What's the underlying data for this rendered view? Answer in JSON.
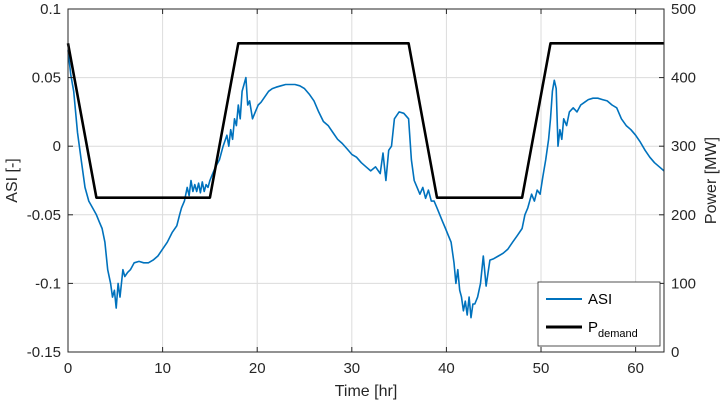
{
  "chart_data": {
    "type": "line",
    "xlabel": "Time [hr]",
    "ylabel_left": "ASI [-]",
    "ylabel_right": "Power [MW]",
    "xlim": [
      0,
      63
    ],
    "ylim_left": [
      -0.15,
      0.1
    ],
    "ylim_right": [
      0,
      500
    ],
    "x_ticks": [
      0,
      10,
      20,
      30,
      40,
      50,
      60
    ],
    "y_left_ticks": [
      -0.15,
      -0.1,
      -0.05,
      0,
      0.05,
      0.1
    ],
    "y_left_tick_labels": [
      "-0.15",
      "-0.1",
      "-0.05",
      "0",
      "0.05",
      "0.1"
    ],
    "y_right_ticks": [
      0,
      100,
      200,
      300,
      400,
      500
    ],
    "grid": true,
    "legend_position": "bottom-right",
    "series": [
      {
        "name": "ASI",
        "axis": "left",
        "color": "#0072BD",
        "x": [
          0,
          0.3,
          0.6,
          1.0,
          1.4,
          1.8,
          2.2,
          2.6,
          3.0,
          3.3,
          3.6,
          3.9,
          4.2,
          4.5,
          4.7,
          4.9,
          5.1,
          5.3,
          5.5,
          5.8,
          6.0,
          6.3,
          6.6,
          7,
          7.5,
          8,
          8.5,
          9,
          9.5,
          10,
          10.5,
          11,
          11.5,
          11.8,
          12,
          12.3,
          12.6,
          12.8,
          13,
          13.2,
          13.4,
          13.6,
          13.8,
          14.0,
          14.2,
          14.4,
          14.6,
          14.8,
          15,
          15.3,
          15.6,
          16,
          16.4,
          16.8,
          17.0,
          17.2,
          17.4,
          17.6,
          17.8,
          18.0,
          18.2,
          18.4,
          18.6,
          18.8,
          19.0,
          19.2,
          19.5,
          19.8,
          20.1,
          20.4,
          20.8,
          21.2,
          21.6,
          22,
          22.5,
          23,
          23.5,
          24,
          24.5,
          25,
          25.5,
          26,
          26.5,
          27,
          27.5,
          28,
          28.5,
          29,
          29.5,
          30,
          30.5,
          31,
          31.5,
          32,
          32.5,
          33,
          33.3,
          33.6,
          33.9,
          34.2,
          34.5,
          35,
          35.5,
          36,
          36.3,
          36.6,
          36.9,
          37.2,
          37.5,
          37.8,
          38.1,
          38.4,
          38.7,
          39,
          39.3,
          39.6,
          39.9,
          40.2,
          40.5,
          40.8,
          41.0,
          41.2,
          41.4,
          41.6,
          41.8,
          42.0,
          42.2,
          42.4,
          42.6,
          42.8,
          43.0,
          43.3,
          43.6,
          43.9,
          44.2,
          44.6,
          45.0,
          45.5,
          46,
          46.5,
          47,
          47.5,
          48,
          48.3,
          48.6,
          49,
          49.3,
          49.6,
          49.9,
          50.2,
          50.5,
          50.8,
          51.0,
          51.2,
          51.4,
          51.6,
          51.8,
          52.0,
          52.2,
          52.4,
          52.7,
          53.0,
          53.4,
          53.8,
          54.2,
          54.6,
          55,
          55.5,
          56,
          56.5,
          57,
          57.5,
          58,
          58.5,
          59,
          59.5,
          60,
          60.5,
          61,
          61.5,
          62,
          62.5,
          63
        ],
        "y": [
          0.07,
          0.052,
          0.04,
          0.01,
          -0.01,
          -0.03,
          -0.04,
          -0.045,
          -0.05,
          -0.055,
          -0.06,
          -0.07,
          -0.09,
          -0.1,
          -0.11,
          -0.105,
          -0.118,
          -0.1,
          -0.11,
          -0.09,
          -0.095,
          -0.092,
          -0.09,
          -0.085,
          -0.084,
          -0.085,
          -0.085,
          -0.083,
          -0.08,
          -0.075,
          -0.07,
          -0.063,
          -0.058,
          -0.05,
          -0.045,
          -0.04,
          -0.03,
          -0.036,
          -0.025,
          -0.033,
          -0.028,
          -0.033,
          -0.027,
          -0.034,
          -0.026,
          -0.033,
          -0.028,
          -0.03,
          -0.025,
          -0.02,
          -0.015,
          -0.01,
          0.0,
          0.008,
          0.0,
          0.012,
          0.005,
          0.02,
          0.015,
          0.03,
          0.02,
          0.04,
          0.045,
          0.05,
          0.03,
          0.033,
          0.02,
          0.025,
          0.03,
          0.032,
          0.036,
          0.04,
          0.042,
          0.043,
          0.044,
          0.045,
          0.045,
          0.045,
          0.044,
          0.042,
          0.038,
          0.033,
          0.025,
          0.018,
          0.015,
          0.01,
          0.005,
          0.002,
          -0.002,
          -0.006,
          -0.008,
          -0.012,
          -0.015,
          -0.018,
          -0.015,
          -0.02,
          -0.005,
          -0.025,
          -0.003,
          0.0,
          0.02,
          0.025,
          0.024,
          0.02,
          -0.01,
          -0.025,
          -0.03,
          -0.035,
          -0.03,
          -0.038,
          -0.032,
          -0.04,
          -0.04,
          -0.045,
          -0.05,
          -0.055,
          -0.06,
          -0.065,
          -0.07,
          -0.085,
          -0.1,
          -0.09,
          -0.105,
          -0.11,
          -0.12,
          -0.113,
          -0.123,
          -0.11,
          -0.125,
          -0.115,
          -0.115,
          -0.11,
          -0.1,
          -0.08,
          -0.102,
          -0.083,
          -0.082,
          -0.08,
          -0.078,
          -0.075,
          -0.07,
          -0.065,
          -0.06,
          -0.05,
          -0.045,
          -0.035,
          -0.04,
          -0.032,
          -0.035,
          -0.022,
          -0.01,
          0.005,
          0.02,
          0.04,
          0.048,
          0.042,
          0.0,
          0.012,
          0.005,
          0.02,
          0.015,
          0.025,
          0.028,
          0.025,
          0.03,
          0.032,
          0.034,
          0.035,
          0.035,
          0.034,
          0.033,
          0.03,
          0.028,
          0.02,
          0.015,
          0.012,
          0.008,
          0.003,
          -0.003,
          -0.008,
          -0.012,
          -0.015,
          -0.018
        ]
      },
      {
        "name": "P",
        "name_subscript": "demand",
        "axis": "right",
        "color": "#000000",
        "x": [
          0,
          3,
          15,
          18,
          36,
          39,
          48,
          51,
          63
        ],
        "y": [
          450,
          225,
          225,
          450,
          450,
          225,
          225,
          450,
          450
        ]
      }
    ]
  }
}
